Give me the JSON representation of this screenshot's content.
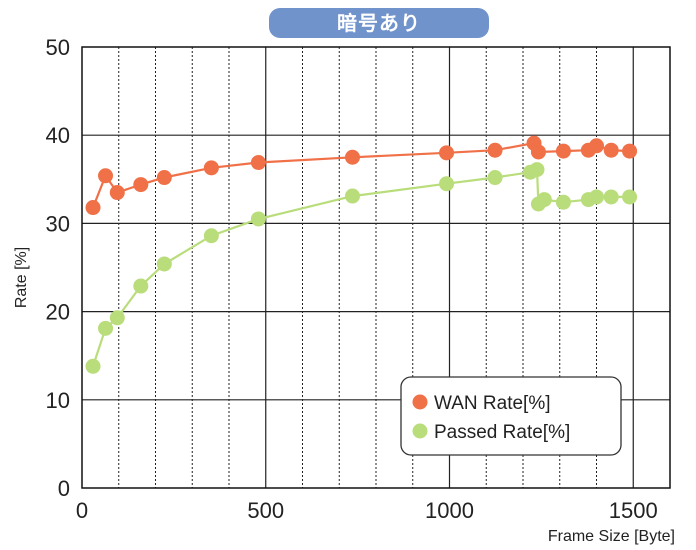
{
  "chart_data": {
    "type": "line",
    "title": "暗号あり",
    "xlabel": "Frame Size [Byte]",
    "ylabel": "Rate [%]",
    "xlim": [
      0,
      1600
    ],
    "ylim": [
      0,
      50
    ],
    "xticks": [
      "0",
      "500",
      "1000",
      "1500"
    ],
    "yticks": [
      "0",
      "10",
      "20",
      "30",
      "40",
      "50"
    ],
    "grid": true,
    "legend_position": "bottom-right",
    "series": [
      {
        "name": "WAN Rate[%]",
        "color": "#f07048",
        "points": [
          [
            30,
            31.8
          ],
          [
            64,
            35.4
          ],
          [
            96,
            33.5
          ],
          [
            160,
            34.4
          ],
          [
            224,
            35.2
          ],
          [
            352,
            36.3
          ],
          [
            480,
            36.9
          ],
          [
            736,
            37.5
          ],
          [
            992,
            38.0
          ],
          [
            1124,
            38.3
          ],
          [
            1230,
            39.1
          ],
          [
            1242,
            38.1
          ],
          [
            1310,
            38.2
          ],
          [
            1378,
            38.3
          ],
          [
            1400,
            38.8
          ],
          [
            1440,
            38.3
          ],
          [
            1490,
            38.2
          ]
        ]
      },
      {
        "name": "Passed Rate[%]",
        "color": "#b9dd7b",
        "points": [
          [
            30,
            13.8
          ],
          [
            64,
            18.1
          ],
          [
            96,
            19.3
          ],
          [
            160,
            22.9
          ],
          [
            224,
            25.4
          ],
          [
            352,
            28.6
          ],
          [
            480,
            30.5
          ],
          [
            736,
            33.1
          ],
          [
            992,
            34.5
          ],
          [
            1124,
            35.2
          ],
          [
            1220,
            35.8
          ],
          [
            1238,
            36.1
          ],
          [
            1242,
            32.2
          ],
          [
            1258,
            32.7
          ],
          [
            1310,
            32.4
          ],
          [
            1378,
            32.7
          ],
          [
            1400,
            33.0
          ],
          [
            1440,
            33.0
          ],
          [
            1490,
            33.0
          ]
        ]
      }
    ]
  }
}
